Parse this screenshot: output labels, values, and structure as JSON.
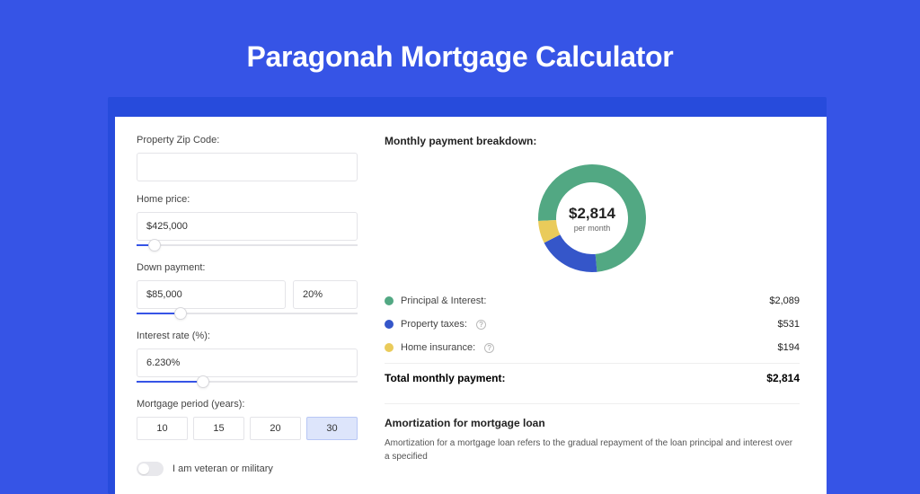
{
  "colors": {
    "page_bg": "#3654e6",
    "shadow_bg": "#274bdc",
    "card_bg": "#ffffff",
    "seg1": "#52a883",
    "seg2": "#3556c9",
    "seg3": "#eacb5a",
    "slider_fill": "#3654e6",
    "border": "#e4e4e8"
  },
  "title": "Paragonah Mortgage Calculator",
  "form": {
    "zip": {
      "label": "Property Zip Code:",
      "value": ""
    },
    "home_price": {
      "label": "Home price:",
      "value": "$425,000",
      "slider_fill_pct": 8,
      "thumb_pct": 8
    },
    "down_payment": {
      "label": "Down payment:",
      "amount": "$85,000",
      "pct": "20%",
      "slider_fill_pct": 20,
      "thumb_pct": 20
    },
    "interest": {
      "label": "Interest rate (%):",
      "value": "6.230%",
      "slider_fill_pct": 30,
      "thumb_pct": 30
    },
    "period": {
      "label": "Mortgage period (years):",
      "options": [
        "10",
        "15",
        "20",
        "30"
      ],
      "active_index": 3
    },
    "veteran": {
      "label": "I am veteran or military",
      "on": false
    }
  },
  "breakdown": {
    "title": "Monthly payment breakdown:",
    "center_amount": "$2,814",
    "center_sub": "per month",
    "donut": {
      "segments": [
        {
          "key": "pi",
          "color": "#52a883",
          "pct": 74.2
        },
        {
          "key": "tax",
          "color": "#3556c9",
          "pct": 18.9
        },
        {
          "key": "ins",
          "color": "#eacb5a",
          "pct": 6.9
        }
      ],
      "stroke_width": 20,
      "radius": 50
    },
    "legend": [
      {
        "label": "Principal & Interest:",
        "value": "$2,089",
        "color": "#52a883",
        "help": false
      },
      {
        "label": "Property taxes:",
        "value": "$531",
        "color": "#3556c9",
        "help": true
      },
      {
        "label": "Home insurance:",
        "value": "$194",
        "color": "#eacb5a",
        "help": true
      }
    ],
    "total": {
      "label": "Total monthly payment:",
      "value": "$2,814"
    }
  },
  "amortization": {
    "title": "Amortization for mortgage loan",
    "body": "Amortization for a mortgage loan refers to the gradual repayment of the loan principal and interest over a specified"
  }
}
